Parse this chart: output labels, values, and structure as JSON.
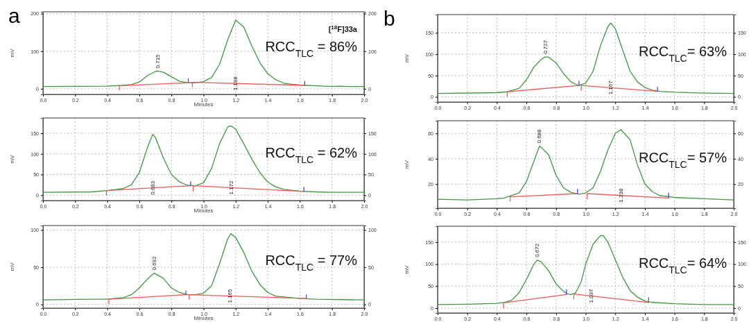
{
  "chart_data": [
    {
      "type": "line",
      "title": "a",
      "xlabel": "Minutes",
      "ylabel": "mV",
      "xlim": [
        0,
        2
      ],
      "ylim": [
        -15,
        205
      ],
      "y2lim": [
        -15,
        205
      ],
      "xticks": [
        {
          "value": 0,
          "label": "0.0"
        },
        0.2,
        0.4,
        0.6,
        0.8,
        {
          "value": 1,
          "label": "1.0"
        },
        1.2,
        1.4,
        1.6,
        1.8,
        {
          "value": 2,
          "label": "2.0"
        }
      ],
      "yticks": [
        0,
        100,
        200
      ],
      "y2ticks": [
        0,
        100,
        200
      ],
      "grid": true,
      "series": [
        {
          "color": "#3c9a3c",
          "x": [
            0,
            0.4,
            0.5,
            0.55,
            0.6,
            0.65,
            0.7,
            0.715,
            0.75,
            0.8,
            0.85,
            0.9,
            0.95,
            1.0,
            1.05,
            1.1,
            1.15,
            1.2,
            1.25,
            1.3,
            1.35,
            1.4,
            1.45,
            1.5,
            1.55,
            1.6,
            1.7,
            1.8,
            1.85,
            1.9,
            2.0
          ],
          "values": [
            6,
            7,
            9,
            11,
            18,
            35,
            46,
            47,
            44,
            32,
            20,
            16,
            16,
            19,
            30,
            65,
            130,
            183,
            165,
            115,
            70,
            40,
            24,
            15,
            12,
            10,
            8,
            6,
            7,
            6,
            6
          ]
        },
        {
          "color": "#f05a5a",
          "x": [
            0.475,
            0.475,
            0.91,
            null,
            0.93,
            0.93,
            1.63
          ],
          "values": [
            -3,
            8,
            16,
            null,
            5,
            17,
            9
          ]
        },
        {
          "color": "#4a4aff",
          "x": [
            0.905,
            0.905,
            null,
            1.63,
            1.63
          ],
          "values": [
            17,
            27,
            null,
            9,
            20
          ]
        }
      ],
      "annotations": [
        {
          "text": "0.715",
          "x": 0.715,
          "y": 47
        },
        {
          "text": "1.198",
          "x": 1.198,
          "y": 14
        },
        "[$^{18}$F]33a",
        "RCC$_{TLC}$ = 86%"
      ]
    },
    {
      "type": "line",
      "xlabel": "Minutes",
      "ylabel": "mV",
      "xlim": [
        0,
        2
      ],
      "ylim": [
        -13,
        187
      ],
      "y2lim": [
        -13,
        187
      ],
      "xticks": [
        {
          "value": 0,
          "label": "0.0"
        },
        0.2,
        0.4,
        0.6,
        0.8,
        {
          "value": 1,
          "label": "1.0"
        },
        1.2,
        1.4,
        1.6,
        1.8,
        {
          "value": 2,
          "label": "2.0"
        }
      ],
      "yticks": [
        0,
        50,
        100,
        150
      ],
      "y2ticks": [
        0,
        50,
        100,
        150
      ],
      "grid": true,
      "series": [
        {
          "color": "#3c9a3c",
          "x": [
            0,
            0.3,
            0.4,
            0.5,
            0.55,
            0.6,
            0.65,
            0.683,
            0.7,
            0.75,
            0.8,
            0.85,
            0.9,
            0.95,
            1.0,
            1.05,
            1.1,
            1.15,
            1.17,
            1.2,
            1.25,
            1.3,
            1.35,
            1.4,
            1.45,
            1.5,
            1.6,
            1.7,
            1.8,
            2.0
          ],
          "values": [
            7,
            8,
            11,
            16,
            25,
            55,
            115,
            147,
            140,
            90,
            50,
            32,
            24,
            23,
            30,
            65,
            125,
            165,
            168,
            160,
            125,
            88,
            55,
            32,
            20,
            14,
            10,
            8,
            7,
            7
          ]
        },
        {
          "color": "#f05a5a",
          "x": [
            0.395,
            0.395,
            0.92,
            null,
            0.935,
            0.935,
            1.625
          ],
          "values": [
            0,
            11,
            23,
            null,
            10,
            23,
            9
          ]
        },
        {
          "color": "#4a4aff",
          "x": [
            0.92,
            0.92,
            null,
            1.625,
            1.625
          ],
          "values": [
            23,
            33,
            null,
            9,
            19
          ]
        }
      ],
      "annotations": [
        {
          "text": "0.683",
          "x": 0.683,
          "y": 17.6
        },
        {
          "text": "1.172",
          "x": 1.172,
          "y": 18.2
        },
        "RCC$_{TLC}$ = 62%"
      ]
    },
    {
      "type": "line",
      "xlabel": "Minutes",
      "ylabel": "mV",
      "xlim": [
        0,
        2
      ],
      "ylim": [
        -5,
        106
      ],
      "y2lim": [
        -5,
        106
      ],
      "xticks": [
        {
          "value": 0,
          "label": "0.0"
        },
        0.2,
        0.4,
        0.6,
        0.8,
        {
          "value": 1,
          "label": "1.0"
        },
        1.2,
        1.4,
        1.6,
        1.8,
        {
          "value": 2,
          "label": "2.0"
        }
      ],
      "yticks": [
        0,
        50,
        100
      ],
      "y2ticks": [
        0,
        50,
        100
      ],
      "grid": true,
      "series": [
        {
          "color": "#3c9a3c",
          "x": [
            0,
            0.3,
            0.4,
            0.5,
            0.55,
            0.6,
            0.65,
            0.692,
            0.75,
            0.8,
            0.85,
            0.9,
            0.95,
            1.0,
            1.05,
            1.1,
            1.15,
            1.17,
            1.2,
            1.25,
            1.3,
            1.35,
            1.4,
            1.45,
            1.5,
            1.6,
            1.7,
            2.0
          ],
          "values": [
            6,
            7,
            7,
            9,
            13,
            22,
            34,
            42,
            35,
            22,
            16,
            13,
            13,
            15,
            25,
            55,
            88,
            95,
            90,
            70,
            45,
            27,
            16,
            11,
            10,
            8,
            7,
            6
          ]
        },
        {
          "color": "#f05a5a",
          "x": [
            0.41,
            0.41,
            0.89,
            null,
            0.91,
            0.91,
            1.64
          ],
          "values": [
            1,
            7,
            13,
            null,
            7,
            13,
            8
          ]
        },
        {
          "color": "#4a4aff",
          "x": [
            0.89,
            0.89,
            null,
            1.64,
            1.64
          ],
          "values": [
            13,
            18,
            null,
            8,
            13
          ]
        }
      ],
      "annotations": [
        {
          "text": "0.692",
          "x": 0.692,
          "y": 42
        },
        {
          "text": "1.165",
          "x": 1.165,
          "y": 11.3
        },
        "RCC$_{TLC}$ = 77%"
      ]
    },
    {
      "type": "line",
      "title": "b",
      "ylabel": "mV",
      "xlim": [
        0,
        2
      ],
      "ylim": [
        -12,
        193
      ],
      "y2lim": [
        -12,
        193
      ],
      "xticks": [
        {
          "value": 0,
          "label": "0.0"
        },
        0.2,
        0.4,
        0.6,
        0.8,
        {
          "value": 1,
          "label": "1.0"
        },
        1.2,
        1.4,
        1.6,
        1.8,
        {
          "value": 2,
          "label": "2.0"
        }
      ],
      "yticks": [
        0,
        50,
        100,
        150
      ],
      "y2ticks": [
        0,
        50,
        100,
        150
      ],
      "grid": true,
      "series": [
        {
          "color": "#3c9a3c",
          "x": [
            0,
            0.4,
            0.47,
            0.55,
            0.6,
            0.65,
            0.7,
            0.727,
            0.75,
            0.8,
            0.85,
            0.9,
            0.95,
            1.0,
            1.05,
            1.1,
            1.15,
            1.17,
            1.2,
            1.25,
            1.3,
            1.35,
            1.4,
            1.45,
            1.5,
            1.6,
            1.8,
            2.0
          ],
          "values": [
            8,
            10,
            12,
            20,
            40,
            70,
            88,
            94,
            93,
            80,
            55,
            35,
            27,
            32,
            60,
            120,
            165,
            173,
            160,
            110,
            60,
            35,
            22,
            16,
            13,
            11,
            9,
            8
          ]
        },
        {
          "color": "#f05a5a",
          "x": [
            0.47,
            0.47,
            0.955,
            null,
            0.97,
            0.97,
            1.485
          ],
          "values": [
            0,
            12,
            27,
            null,
            15,
            27,
            13
          ]
        },
        {
          "color": "#4a4aff",
          "x": [
            0.955,
            0.955,
            null,
            1.485,
            1.485
          ],
          "values": [
            27,
            37,
            null,
            13,
            23
          ]
        }
      ],
      "annotations": [
        {
          "text": "0.727",
          "x": 0.727,
          "y": 94
        },
        {
          "text": "1.167",
          "x": 1.167,
          "y": 21.6
        },
        "RCC$_{TLC}$= 63%"
      ]
    },
    {
      "type": "line",
      "ylabel": "mV",
      "xlim": [
        0,
        2
      ],
      "ylim": [
        1,
        70
      ],
      "y2lim": [
        1,
        70
      ],
      "xticks": [
        {
          "value": 0,
          "label": "0.0"
        },
        0.2,
        0.4,
        0.6,
        0.8,
        {
          "value": 1,
          "label": "1.0"
        },
        1.2,
        1.4,
        1.6,
        1.8,
        {
          "value": 2,
          "label": "2.0"
        }
      ],
      "yticks": [
        20,
        40,
        60
      ],
      "y2ticks": [
        20,
        40,
        60
      ],
      "grid": true,
      "series": [
        {
          "color": "#3c9a3c",
          "x": [
            0,
            0.2,
            0.4,
            0.45,
            0.5,
            0.55,
            0.6,
            0.65,
            0.688,
            0.7,
            0.75,
            0.8,
            0.85,
            0.9,
            0.95,
            1.0,
            1.05,
            1.1,
            1.15,
            1.2,
            1.238,
            1.3,
            1.35,
            1.4,
            1.45,
            1.5,
            1.6,
            1.8,
            2.0
          ],
          "values": [
            8,
            7.5,
            8.5,
            9,
            11,
            13,
            22,
            38,
            50,
            49,
            43,
            27,
            17,
            13.5,
            12,
            13,
            17,
            30,
            47,
            60,
            63,
            55,
            35,
            20,
            14,
            11,
            9.5,
            8.5,
            7.5
          ]
        },
        {
          "color": "#f05a5a",
          "x": [
            0.49,
            0.49,
            0.945,
            null,
            1.01,
            1.01,
            1.56
          ],
          "values": [
            6.5,
            10,
            12.5,
            null,
            8.5,
            12.5,
            9
          ]
        },
        {
          "color": "#4a4aff",
          "x": [
            0.945,
            0.945,
            null,
            1.56,
            1.56
          ],
          "values": [
            12.5,
            16,
            null,
            9,
            13
          ]
        }
      ],
      "annotations": [
        {
          "text": "0.688",
          "x": 0.688,
          "y": 50
        },
        {
          "text": "1.238",
          "x": 1.238,
          "y": 11.05
        },
        "RCC$_{TLC}$= 57%"
      ]
    },
    {
      "type": "line",
      "ylabel": "mV",
      "xlim": [
        0,
        2
      ],
      "ylim": [
        -11,
        186
      ],
      "y2lim": [
        -11,
        186
      ],
      "xticks": [
        {
          "value": 0,
          "label": "0.0"
        },
        0.2,
        0.4,
        0.6,
        0.8,
        {
          "value": 1,
          "label": "1.0"
        },
        1.2,
        1.4,
        1.6,
        1.8,
        {
          "value": 2,
          "label": "2.0"
        }
      ],
      "yticks": [
        0,
        50,
        100,
        150
      ],
      "y2ticks": [
        0,
        50,
        100,
        150
      ],
      "grid": true,
      "series": [
        {
          "color": "#3c9a3c",
          "x": [
            0,
            0.2,
            0.4,
            0.45,
            0.5,
            0.55,
            0.6,
            0.65,
            0.672,
            0.7,
            0.75,
            0.8,
            0.85,
            0.88,
            0.9,
            0.93,
            0.97,
            1.0,
            1.05,
            1.1,
            1.12,
            1.15,
            1.2,
            1.25,
            1.3,
            1.35,
            1.4,
            1.45,
            1.6,
            1.8,
            2.0
          ],
          "values": [
            8,
            9,
            11,
            13,
            18,
            35,
            65,
            100,
            109,
            105,
            85,
            55,
            38,
            32,
            31,
            34,
            60,
            100,
            145,
            165,
            164,
            150,
            110,
            70,
            40,
            25,
            16,
            13,
            10,
            8,
            8
          ]
        },
        {
          "color": "#f05a5a",
          "x": [
            0.445,
            0.445,
            0.87,
            null,
            0.92,
            0.92,
            1.425
          ],
          "values": [
            0,
            12,
            31,
            null,
            21,
            32,
            13
          ]
        },
        {
          "color": "#4a4aff",
          "x": [
            0.87,
            0.87,
            null,
            1.425,
            1.425
          ],
          "values": [
            31,
            42,
            null,
            13,
            24
          ]
        }
      ],
      "annotations": [
        {
          "text": "0.672",
          "x": 0.672,
          "y": 109
        },
        {
          "text": "1.037",
          "x": 1.037,
          "y": 27.6
        },
        "RCC$_{TLC}$= 64%"
      ]
    }
  ]
}
